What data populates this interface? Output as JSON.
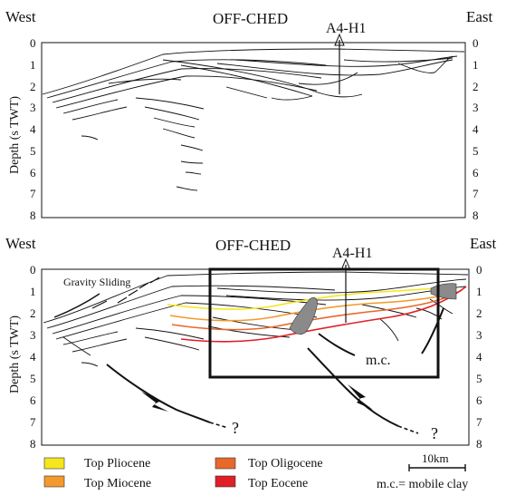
{
  "figure": {
    "top_section": {
      "title": "OFF-CHED",
      "west_label": "West",
      "east_label": "East",
      "well_label": "A4-H1",
      "y_axis_label": "Depth (s TWT)",
      "depth_ticks": [
        "0",
        "1",
        "2",
        "3",
        "4",
        "5",
        "6",
        "7",
        "8"
      ]
    },
    "bottom_section": {
      "title": "OFF-CHED",
      "west_label": "West",
      "east_label": "East",
      "well_label": "A4-H1",
      "y_axis_label": "Depth (s TWT)",
      "depth_ticks": [
        "0",
        "1",
        "2",
        "3",
        "4",
        "5",
        "6",
        "7",
        "8"
      ],
      "annotation_gravity": "Gravity Sliding",
      "annotation_mc": "m.c.",
      "question_marks": [
        "?",
        "?"
      ]
    },
    "legend": {
      "items": [
        {
          "label": "Top Pliocene",
          "color": "#f5e61e"
        },
        {
          "label": "Top Miocene",
          "color": "#f29a2e"
        },
        {
          "label": "Top Oligocene",
          "color": "#e8672a"
        },
        {
          "label": "Top Eocene",
          "color": "#e01f26"
        }
      ],
      "scale_label": "10km",
      "mc_note": "m.c.= mobile clay"
    },
    "colors": {
      "line": "#111111",
      "mobile_clay_fill": "#8a8a8a",
      "box_outline": "#111111"
    }
  }
}
